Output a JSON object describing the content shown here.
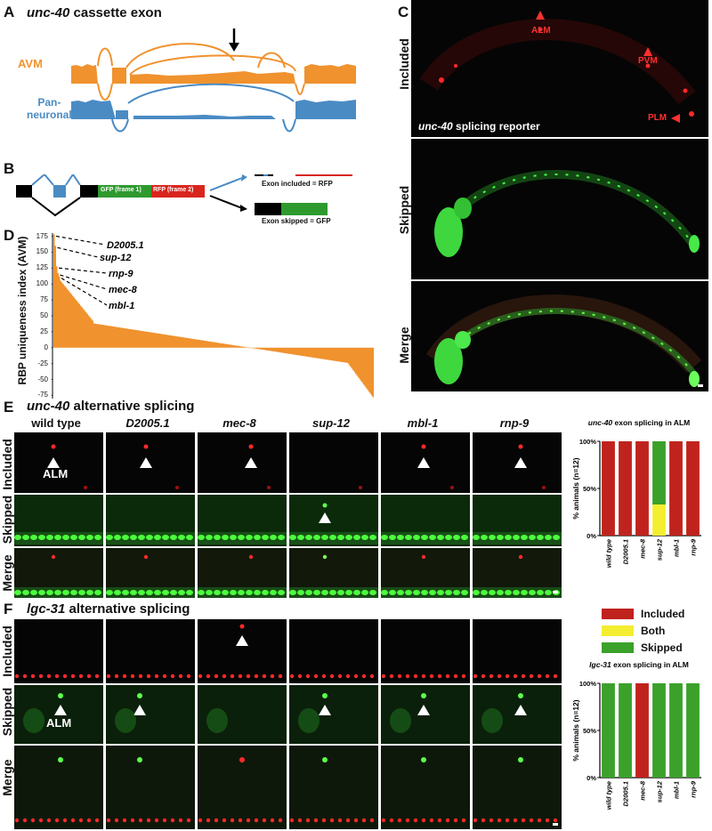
{
  "panel_labels": {
    "A": "A",
    "B": "B",
    "C": "C",
    "D": "D",
    "E": "E",
    "F": "F"
  },
  "panelA": {
    "title_gene": "unc-40",
    "title_rest": " cassette exon",
    "track1_label": "AVM",
    "track2_label_line1": "Pan-",
    "track2_label_line2": "neuronal",
    "colors": {
      "avm": "#f0922e",
      "pan": "#4a8bc4"
    }
  },
  "panelB": {
    "gfp_label": "GFP (frame 1)",
    "rfp_label": "RFP (frame 2)",
    "included_label": "Exon included = RFP",
    "skipped_label": "Exon skipped = GFP",
    "colors": {
      "gfp": "#2e9a2e",
      "rfp": "#d8261f",
      "exon": "#4a8bc4"
    }
  },
  "panelC": {
    "row_labels": [
      "Included",
      "Skipped",
      "Merge"
    ],
    "reporter_gene": "unc-40",
    "reporter_rest": " splicing reporter",
    "neurons": [
      "ALM",
      "PVM",
      "PLM"
    ]
  },
  "panelD": {
    "ylabel": "RBP uniqueness index (AVM)",
    "yticks": [
      "175",
      "150",
      "125",
      "100",
      "75",
      "50",
      "25",
      "0",
      "-25",
      "-50",
      "-75"
    ],
    "annotations": [
      "D2005.1",
      "sup-12",
      "rnp-9",
      "mec-8",
      "mbl-1"
    ]
  },
  "panelE": {
    "title_gene": "unc-40",
    "title_rest": " alternative splicing",
    "columns": [
      "wild type",
      "D2005.1",
      "mec-8",
      "sup-12",
      "mbl-1",
      "rnp-9"
    ],
    "row_labels": [
      "Included",
      "Skipped",
      "Merge"
    ],
    "alm_label": "ALM"
  },
  "panelF": {
    "title_gene": "lgc-31",
    "title_rest": " alternative splicing",
    "row_labels": [
      "Included",
      "Skipped",
      "Merge"
    ],
    "alm_label": "ALM"
  },
  "legend": {
    "items": [
      {
        "label": "Included",
        "color": "#c0231d"
      },
      {
        "label": "Both",
        "color": "#f4ee30"
      },
      {
        "label": "Skipped",
        "color": "#3ba12b"
      }
    ]
  },
  "chart_data": [
    {
      "type": "bar",
      "title": "unc-40 exon splicing in ALM",
      "title_gene": "unc-40",
      "title_rest": " exon splicing in ALM",
      "ylabel": "% animals (n=12)",
      "yticks": [
        "100%",
        "50%",
        "0%"
      ],
      "ylim": [
        0,
        100
      ],
      "stacked": true,
      "categories": [
        "wild type",
        "D2005.1",
        "mec-8",
        "sup-12",
        "mbl-1",
        "rnp-9"
      ],
      "series": [
        {
          "name": "Included",
          "values": [
            100,
            100,
            100,
            0,
            100,
            100
          ]
        },
        {
          "name": "Both",
          "values": [
            0,
            0,
            0,
            33,
            0,
            0
          ]
        },
        {
          "name": "Skipped",
          "values": [
            0,
            0,
            0,
            67,
            0,
            0
          ]
        }
      ]
    },
    {
      "type": "bar",
      "title": "lgc-31 exon splicing in ALM",
      "title_gene": "lgc-31",
      "title_rest": " exon splicing in ALM",
      "ylabel": "% animals (n=12)",
      "yticks": [
        "100%",
        "50%",
        "0%"
      ],
      "ylim": [
        0,
        100
      ],
      "stacked": true,
      "categories": [
        "wild type",
        "D2005.1",
        "mec-8",
        "sup-12",
        "mbl-1",
        "rnp-9"
      ],
      "series": [
        {
          "name": "Included",
          "values": [
            0,
            0,
            100,
            0,
            0,
            0
          ]
        },
        {
          "name": "Both",
          "values": [
            0,
            0,
            0,
            0,
            0,
            0
          ]
        },
        {
          "name": "Skipped",
          "values": [
            100,
            100,
            0,
            100,
            100,
            100
          ]
        }
      ]
    },
    {
      "type": "bar",
      "title": "",
      "ylabel": "RBP uniqueness index (AVM)",
      "ylim": [
        -80,
        180
      ],
      "yticks": [
        175,
        150,
        125,
        100,
        75,
        50,
        25,
        0,
        -25,
        -50,
        -75
      ],
      "labeled_bars": [
        {
          "name": "D2005.1",
          "value": 178
        },
        {
          "name": "sup-12",
          "value": 160
        },
        {
          "name": "rnp-9",
          "value": 128
        },
        {
          "name": "mec-8",
          "value": 117
        },
        {
          "name": "mbl-1",
          "value": 112
        }
      ],
      "n_bars": 240,
      "min_value": -78
    }
  ]
}
